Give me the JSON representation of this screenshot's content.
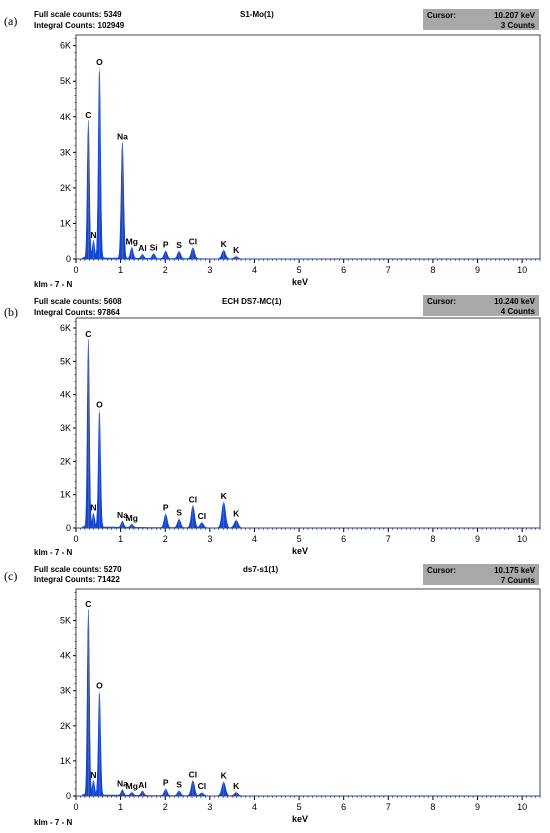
{
  "panels": [
    {
      "panel_label": "(a)",
      "full_scale": "Full scale counts: 5349",
      "integral": "Integral Counts: 102949",
      "title": "S1-Mo(1)",
      "cursor_label": "Cursor:",
      "cursor_value": "10.207 keV",
      "cursor_counts": "3 Counts",
      "footer": "klm - 7 - N",
      "xlabel": "keV"
    },
    {
      "panel_label": "(b)",
      "full_scale": "Full scale counts: 5608",
      "integral": "Integral Counts: 97864",
      "title": "ECH DS7-MC(1)",
      "cursor_label": "Cursor:",
      "cursor_value": "10.240 keV",
      "cursor_counts": "4 Counts",
      "footer": "klm - 7 - N",
      "xlabel": "keV"
    },
    {
      "panel_label": "(c)",
      "full_scale": "Full scale counts: 5270",
      "integral": "Integral Counts: 71422",
      "title": "ds7-s1(1)",
      "cursor_label": "Cursor:",
      "cursor_value": "10.175 keV",
      "cursor_counts": "7 Counts",
      "footer": "klm - 7 - N",
      "xlabel": "keV"
    }
  ],
  "chart_data": [
    {
      "type": "area",
      "title": "S1-Mo(1)",
      "xlabel": "keV",
      "ylabel": "",
      "xlim": [
        0,
        10.4
      ],
      "ylim": [
        0,
        6300
      ],
      "x_ticks": [
        0,
        1,
        2,
        3,
        4,
        5,
        6,
        7,
        8,
        9,
        10
      ],
      "y_ticks": [
        {
          "value": 0,
          "label": "0"
        },
        {
          "value": 1000,
          "label": "1K"
        },
        {
          "value": 2000,
          "label": "2K"
        },
        {
          "value": 3000,
          "label": "3K"
        },
        {
          "value": 4000,
          "label": "4K"
        },
        {
          "value": 5000,
          "label": "5K"
        },
        {
          "value": 6000,
          "label": "6K"
        }
      ],
      "color": "#1446d2",
      "peaks": [
        {
          "x": 0.277,
          "y": 3850,
          "label": "C"
        },
        {
          "x": 0.392,
          "y": 480,
          "label": "N"
        },
        {
          "x": 0.525,
          "y": 5349,
          "label": "O"
        },
        {
          "x": 1.04,
          "y": 3250,
          "label": "Na"
        },
        {
          "x": 1.25,
          "y": 300,
          "label": "Mg"
        },
        {
          "x": 1.49,
          "y": 110,
          "label": "Al"
        },
        {
          "x": 1.74,
          "y": 130,
          "label": "Si"
        },
        {
          "x": 2.01,
          "y": 210,
          "label": "P"
        },
        {
          "x": 2.31,
          "y": 200,
          "label": "S"
        },
        {
          "x": 2.62,
          "y": 300,
          "label": "Cl"
        },
        {
          "x": 3.31,
          "y": 230,
          "label": "K"
        },
        {
          "x": 3.59,
          "y": 60,
          "label": "K"
        }
      ]
    },
    {
      "type": "area",
      "title": "ECH DS7-MC(1)",
      "xlabel": "keV",
      "ylabel": "",
      "xlim": [
        0,
        10.4
      ],
      "ylim": [
        0,
        6300
      ],
      "x_ticks": [
        0,
        1,
        2,
        3,
        4,
        5,
        6,
        7,
        8,
        9,
        10
      ],
      "y_ticks": [
        {
          "value": 0,
          "label": "0"
        },
        {
          "value": 1000,
          "label": "1K"
        },
        {
          "value": 2000,
          "label": "2K"
        },
        {
          "value": 3000,
          "label": "3K"
        },
        {
          "value": 4000,
          "label": "4K"
        },
        {
          "value": 5000,
          "label": "5K"
        },
        {
          "value": 6000,
          "label": "6K"
        }
      ],
      "color": "#1446d2",
      "peaks": [
        {
          "x": 0.277,
          "y": 5608,
          "label": "C"
        },
        {
          "x": 0.392,
          "y": 400,
          "label": "N"
        },
        {
          "x": 0.525,
          "y": 3500,
          "label": "O"
        },
        {
          "x": 1.04,
          "y": 180,
          "label": "Na"
        },
        {
          "x": 1.25,
          "y": 90,
          "label": "Mg"
        },
        {
          "x": 2.01,
          "y": 400,
          "label": "P"
        },
        {
          "x": 2.31,
          "y": 250,
          "label": "S"
        },
        {
          "x": 2.62,
          "y": 650,
          "label": "Cl"
        },
        {
          "x": 2.82,
          "y": 150,
          "label": "Cl"
        },
        {
          "x": 3.31,
          "y": 750,
          "label": "K"
        },
        {
          "x": 3.59,
          "y": 220,
          "label": "K"
        }
      ]
    },
    {
      "type": "area",
      "title": "ds7-s1(1)",
      "xlabel": "keV",
      "ylabel": "",
      "xlim": [
        0,
        10.4
      ],
      "ylim": [
        0,
        5900
      ],
      "x_ticks": [
        0,
        1,
        2,
        3,
        4,
        5,
        6,
        7,
        8,
        9,
        10
      ],
      "y_ticks": [
        {
          "value": 0,
          "label": "0"
        },
        {
          "value": 1000,
          "label": "1K"
        },
        {
          "value": 2000,
          "label": "2K"
        },
        {
          "value": 3000,
          "label": "3K"
        },
        {
          "value": 4000,
          "label": "4K"
        },
        {
          "value": 5000,
          "label": "5K"
        }
      ],
      "color": "#1446d2",
      "peaks": [
        {
          "x": 0.277,
          "y": 5270,
          "label": "C"
        },
        {
          "x": 0.392,
          "y": 400,
          "label": "N"
        },
        {
          "x": 0.525,
          "y": 2950,
          "label": "O"
        },
        {
          "x": 1.04,
          "y": 150,
          "label": "Na"
        },
        {
          "x": 1.25,
          "y": 80,
          "label": "Mg"
        },
        {
          "x": 1.49,
          "y": 120,
          "label": "Al"
        },
        {
          "x": 2.01,
          "y": 180,
          "label": "P"
        },
        {
          "x": 2.31,
          "y": 130,
          "label": "S"
        },
        {
          "x": 2.62,
          "y": 420,
          "label": "Cl"
        },
        {
          "x": 2.82,
          "y": 80,
          "label": "Cl"
        },
        {
          "x": 3.31,
          "y": 380,
          "label": "K"
        },
        {
          "x": 3.59,
          "y": 90,
          "label": "K"
        }
      ]
    }
  ]
}
